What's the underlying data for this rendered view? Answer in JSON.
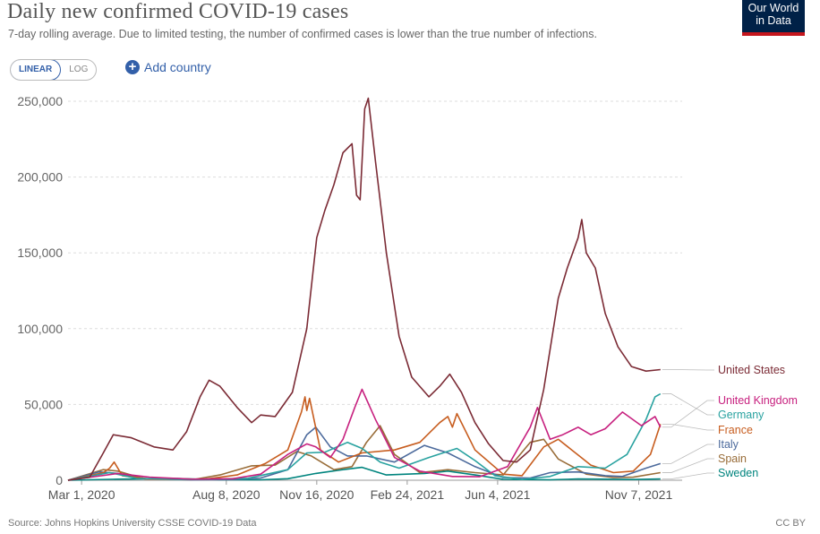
{
  "header": {
    "title": "Daily new confirmed COVID-19 cases",
    "subtitle": "7-day rolling average. Due to limited testing, the number of confirmed cases is lower than the true number of infections.",
    "logo_line1": "Our World",
    "logo_line2": "in Data"
  },
  "controls": {
    "linear_label": "LINEAR",
    "log_label": "LOG",
    "add_country_label": "Add country",
    "active_scale": "linear"
  },
  "footer": {
    "source": "Source: Johns Hopkins University CSSE COVID-19 Data",
    "license": "CC BY"
  },
  "chart_data": {
    "type": "line",
    "title": "Daily new confirmed COVID-19 cases",
    "xlabel": "",
    "ylabel": "",
    "ylim": [
      0,
      250000
    ],
    "yticks": [
      0,
      50000,
      100000,
      150000,
      200000,
      250000
    ],
    "ytick_labels": [
      "0",
      "50,000",
      "100,000",
      "150,000",
      "200,000",
      "250,000"
    ],
    "xlim": [
      "2020-02-15",
      "2021-12-25"
    ],
    "xticks": [
      "2020-03-01",
      "2020-08-08",
      "2020-11-16",
      "2021-02-24",
      "2021-06-04",
      "2021-11-07"
    ],
    "xtick_labels": [
      "Mar 1, 2020",
      "Aug 8, 2020",
      "Nov 16, 2020",
      "Feb 24, 2021",
      "Jun 4, 2021",
      "Nov 7, 2021"
    ],
    "grid": "horizontal dashed",
    "legend_position": "right, end-of-line labels",
    "series": [
      {
        "name": "United States",
        "color": "#7b2b35",
        "points": [
          [
            "2020-02-15",
            0
          ],
          [
            "2020-03-10",
            2000
          ],
          [
            "2020-03-25",
            18000
          ],
          [
            "2020-04-05",
            30000
          ],
          [
            "2020-04-25",
            28000
          ],
          [
            "2020-05-20",
            22000
          ],
          [
            "2020-06-10",
            20000
          ],
          [
            "2020-06-25",
            32000
          ],
          [
            "2020-07-10",
            55000
          ],
          [
            "2020-07-20",
            66000
          ],
          [
            "2020-08-01",
            62000
          ],
          [
            "2020-08-20",
            48000
          ],
          [
            "2020-09-05",
            38000
          ],
          [
            "2020-09-15",
            43000
          ],
          [
            "2020-10-01",
            42000
          ],
          [
            "2020-10-20",
            58000
          ],
          [
            "2020-11-05",
            100000
          ],
          [
            "2020-11-16",
            160000
          ],
          [
            "2020-11-25",
            178000
          ],
          [
            "2020-12-05",
            195000
          ],
          [
            "2020-12-15",
            216000
          ],
          [
            "2020-12-25",
            222000
          ],
          [
            "2020-12-30",
            188000
          ],
          [
            "2021-01-03",
            185000
          ],
          [
            "2021-01-08",
            245000
          ],
          [
            "2021-01-12",
            252000
          ],
          [
            "2021-01-20",
            210000
          ],
          [
            "2021-02-01",
            150000
          ],
          [
            "2021-02-15",
            95000
          ],
          [
            "2021-03-01",
            68000
          ],
          [
            "2021-03-20",
            55000
          ],
          [
            "2021-04-01",
            62000
          ],
          [
            "2021-04-12",
            70000
          ],
          [
            "2021-04-25",
            58000
          ],
          [
            "2021-05-10",
            38000
          ],
          [
            "2021-05-25",
            24000
          ],
          [
            "2021-06-10",
            13000
          ],
          [
            "2021-06-25",
            12000
          ],
          [
            "2021-07-10",
            20000
          ],
          [
            "2021-07-25",
            60000
          ],
          [
            "2021-08-10",
            120000
          ],
          [
            "2021-08-20",
            140000
          ],
          [
            "2021-09-01",
            160000
          ],
          [
            "2021-09-05",
            172000
          ],
          [
            "2021-09-10",
            150000
          ],
          [
            "2021-09-20",
            140000
          ],
          [
            "2021-10-01",
            110000
          ],
          [
            "2021-10-15",
            88000
          ],
          [
            "2021-10-30",
            75000
          ],
          [
            "2021-11-15",
            72000
          ],
          [
            "2021-12-01",
            73000
          ]
        ]
      },
      {
        "name": "United Kingdom",
        "color": "#c7217f",
        "points": [
          [
            "2020-02-15",
            0
          ],
          [
            "2020-04-10",
            4500
          ],
          [
            "2020-05-15",
            2000
          ],
          [
            "2020-07-01",
            700
          ],
          [
            "2020-08-15",
            1000
          ],
          [
            "2020-09-15",
            4000
          ],
          [
            "2020-10-15",
            17000
          ],
          [
            "2020-11-05",
            24000
          ],
          [
            "2020-11-15",
            22000
          ],
          [
            "2020-12-01",
            15000
          ],
          [
            "2020-12-15",
            27000
          ],
          [
            "2020-12-28",
            48000
          ],
          [
            "2021-01-05",
            60000
          ],
          [
            "2021-01-20",
            40000
          ],
          [
            "2021-02-10",
            15000
          ],
          [
            "2021-03-10",
            6000
          ],
          [
            "2021-04-15",
            2500
          ],
          [
            "2021-05-15",
            2300
          ],
          [
            "2021-06-15",
            9000
          ],
          [
            "2021-07-10",
            35000
          ],
          [
            "2021-07-18",
            48000
          ],
          [
            "2021-08-01",
            27000
          ],
          [
            "2021-08-15",
            30000
          ],
          [
            "2021-09-01",
            35000
          ],
          [
            "2021-09-15",
            30000
          ],
          [
            "2021-10-01",
            34000
          ],
          [
            "2021-10-20",
            45000
          ],
          [
            "2021-11-10",
            36000
          ],
          [
            "2021-11-25",
            42000
          ],
          [
            "2021-12-01",
            35000
          ]
        ]
      },
      {
        "name": "Germany",
        "color": "#29a2a0",
        "points": [
          [
            "2020-02-15",
            0
          ],
          [
            "2020-04-01",
            5000
          ],
          [
            "2020-05-01",
            1200
          ],
          [
            "2020-07-01",
            500
          ],
          [
            "2020-09-01",
            1300
          ],
          [
            "2020-10-15",
            7000
          ],
          [
            "2020-11-05",
            18000
          ],
          [
            "2020-11-25",
            18500
          ],
          [
            "2020-12-20",
            25000
          ],
          [
            "2021-01-05",
            21000
          ],
          [
            "2021-01-25",
            12000
          ],
          [
            "2021-02-15",
            8000
          ],
          [
            "2021-03-20",
            15000
          ],
          [
            "2021-04-20",
            21000
          ],
          [
            "2021-05-10",
            13000
          ],
          [
            "2021-06-01",
            3000
          ],
          [
            "2021-07-01",
            600
          ],
          [
            "2021-08-01",
            2500
          ],
          [
            "2021-09-01",
            9000
          ],
          [
            "2021-10-01",
            8000
          ],
          [
            "2021-10-25",
            17000
          ],
          [
            "2021-11-15",
            40000
          ],
          [
            "2021-11-25",
            55000
          ],
          [
            "2021-12-01",
            57000
          ]
        ]
      },
      {
        "name": "France",
        "color": "#c75d1f",
        "points": [
          [
            "2020-02-15",
            0
          ],
          [
            "2020-03-25",
            5000
          ],
          [
            "2020-04-01",
            8000
          ],
          [
            "2020-04-06",
            12000
          ],
          [
            "2020-04-15",
            3000
          ],
          [
            "2020-05-15",
            800
          ],
          [
            "2020-07-15",
            700
          ],
          [
            "2020-08-20",
            3500
          ],
          [
            "2020-09-20",
            11000
          ],
          [
            "2020-10-15",
            20000
          ],
          [
            "2020-10-30",
            45000
          ],
          [
            "2020-11-03",
            55000
          ],
          [
            "2020-11-05",
            46000
          ],
          [
            "2020-11-08",
            54000
          ],
          [
            "2020-11-20",
            20000
          ],
          [
            "2020-12-10",
            12000
          ],
          [
            "2021-01-05",
            18000
          ],
          [
            "2021-02-10",
            20000
          ],
          [
            "2021-03-10",
            25000
          ],
          [
            "2021-04-01",
            38000
          ],
          [
            "2021-04-10",
            42000
          ],
          [
            "2021-04-15",
            35000
          ],
          [
            "2021-04-20",
            44000
          ],
          [
            "2021-05-10",
            20000
          ],
          [
            "2021-06-10",
            4000
          ],
          [
            "2021-07-01",
            3000
          ],
          [
            "2021-07-25",
            22000
          ],
          [
            "2021-08-10",
            27000
          ],
          [
            "2021-08-25",
            20000
          ],
          [
            "2021-09-15",
            10000
          ],
          [
            "2021-10-10",
            5000
          ],
          [
            "2021-11-01",
            6000
          ],
          [
            "2021-11-20",
            17000
          ],
          [
            "2021-12-01",
            37000
          ]
        ]
      },
      {
        "name": "Italy",
        "color": "#4c6a9c",
        "points": [
          [
            "2020-02-15",
            0
          ],
          [
            "2020-03-20",
            5500
          ],
          [
            "2020-04-10",
            4500
          ],
          [
            "2020-05-10",
            1200
          ],
          [
            "2020-07-01",
            250
          ],
          [
            "2020-08-15",
            500
          ],
          [
            "2020-09-15",
            1500
          ],
          [
            "2020-10-15",
            7000
          ],
          [
            "2020-11-05",
            30000
          ],
          [
            "2020-11-15",
            35000
          ],
          [
            "2020-12-01",
            22000
          ],
          [
            "2020-12-20",
            16000
          ],
          [
            "2021-01-10",
            16000
          ],
          [
            "2021-02-10",
            12000
          ],
          [
            "2021-03-15",
            23000
          ],
          [
            "2021-04-10",
            18000
          ],
          [
            "2021-05-10",
            9000
          ],
          [
            "2021-06-10",
            1800
          ],
          [
            "2021-07-10",
            1500
          ],
          [
            "2021-08-01",
            5000
          ],
          [
            "2021-09-01",
            5500
          ],
          [
            "2021-10-01",
            3000
          ],
          [
            "2021-10-20",
            2500
          ],
          [
            "2021-11-15",
            8000
          ],
          [
            "2021-12-01",
            11000
          ]
        ]
      },
      {
        "name": "Spain",
        "color": "#996d39",
        "points": [
          [
            "2020-02-15",
            0
          ],
          [
            "2020-03-25",
            7000
          ],
          [
            "2020-04-10",
            6000
          ],
          [
            "2020-05-10",
            800
          ],
          [
            "2020-07-01",
            300
          ],
          [
            "2020-08-01",
            3500
          ],
          [
            "2020-09-05",
            9500
          ],
          [
            "2020-10-01",
            10000
          ],
          [
            "2020-10-25",
            19000
          ],
          [
            "2020-11-10",
            16000
          ],
          [
            "2020-12-05",
            7000
          ],
          [
            "2020-12-25",
            9000
          ],
          [
            "2021-01-10",
            25000
          ],
          [
            "2021-01-25",
            36000
          ],
          [
            "2021-02-10",
            17000
          ],
          [
            "2021-03-10",
            5000
          ],
          [
            "2021-04-10",
            7000
          ],
          [
            "2021-05-10",
            5000
          ],
          [
            "2021-06-10",
            3500
          ],
          [
            "2021-07-10",
            25000
          ],
          [
            "2021-07-25",
            27000
          ],
          [
            "2021-08-10",
            14000
          ],
          [
            "2021-09-10",
            4000
          ],
          [
            "2021-10-10",
            1800
          ],
          [
            "2021-11-01",
            2000
          ],
          [
            "2021-12-01",
            5000
          ]
        ]
      },
      {
        "name": "Sweden",
        "color": "#00847e",
        "points": [
          [
            "2020-02-15",
            0
          ],
          [
            "2020-04-10",
            700
          ],
          [
            "2020-06-15",
            1100
          ],
          [
            "2020-08-01",
            300
          ],
          [
            "2020-09-15",
            300
          ],
          [
            "2020-10-15",
            1000
          ],
          [
            "2020-11-15",
            4500
          ],
          [
            "2020-12-15",
            7000
          ],
          [
            "2021-01-05",
            8500
          ],
          [
            "2021-02-01",
            3500
          ],
          [
            "2021-03-15",
            4500
          ],
          [
            "2021-04-10",
            6000
          ],
          [
            "2021-05-10",
            3500
          ],
          [
            "2021-06-10",
            600
          ],
          [
            "2021-08-01",
            300
          ],
          [
            "2021-09-01",
            800
          ],
          [
            "2021-10-01",
            700
          ],
          [
            "2021-11-01",
            500
          ],
          [
            "2021-12-01",
            800
          ]
        ]
      }
    ]
  }
}
